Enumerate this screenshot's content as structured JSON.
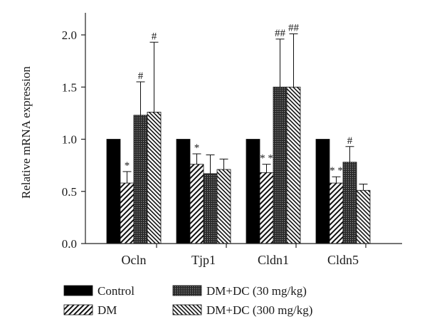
{
  "chart_data": {
    "type": "bar",
    "title": "",
    "xlabel": "",
    "ylabel": "Relative mRNA expression",
    "ylim": [
      0,
      2.2
    ],
    "yticks": [
      "0.0",
      "0.5",
      "1.0",
      "1.5",
      "2.0"
    ],
    "categories": [
      "Ocln",
      "Tjp1",
      "Cldn1",
      "Cldn5"
    ],
    "legend_position": "bottom",
    "series": [
      {
        "name": "Control",
        "pattern": "solid",
        "values": [
          1.0,
          1.0,
          1.0,
          1.0
        ],
        "errors": [
          0,
          0,
          0,
          0
        ],
        "annotations": [
          "",
          "",
          "",
          ""
        ]
      },
      {
        "name": "DM",
        "pattern": "diagonal",
        "values": [
          0.58,
          0.76,
          0.68,
          0.58
        ],
        "errors": [
          0.11,
          0.1,
          0.08,
          0.06
        ],
        "annotations": [
          "*",
          "*",
          "* *",
          "* *"
        ]
      },
      {
        "name": "DM+DC (30 mg/kg)",
        "pattern": "dots",
        "values": [
          1.23,
          0.67,
          1.5,
          0.78
        ],
        "errors": [
          0.32,
          0.18,
          0.46,
          0.15
        ],
        "annotations": [
          "#",
          "",
          "##",
          "#"
        ]
      },
      {
        "name": "DM+DC (300 mg/kg)",
        "pattern": "dense-diagonal",
        "values": [
          1.26,
          0.71,
          1.5,
          0.51
        ],
        "errors": [
          0.67,
          0.1,
          0.51,
          0.06
        ],
        "annotations": [
          "#",
          "",
          "##",
          ""
        ]
      }
    ]
  }
}
